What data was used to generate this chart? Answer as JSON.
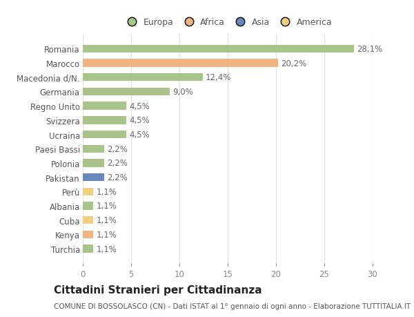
{
  "categories": [
    "Romania",
    "Marocco",
    "Macedonia d/N.",
    "Germania",
    "Regno Unito",
    "Svizzera",
    "Ucraina",
    "Paesi Bassi",
    "Polonia",
    "Pakistan",
    "Perù",
    "Albania",
    "Cuba",
    "Kenya",
    "Turchia"
  ],
  "values": [
    28.1,
    20.2,
    12.4,
    9.0,
    4.5,
    4.5,
    4.5,
    2.2,
    2.2,
    2.2,
    1.1,
    1.1,
    1.1,
    1.1,
    1.1
  ],
  "labels": [
    "28,1%",
    "20,2%",
    "12,4%",
    "9,0%",
    "4,5%",
    "4,5%",
    "4,5%",
    "2,2%",
    "2,2%",
    "2,2%",
    "1,1%",
    "1,1%",
    "1,1%",
    "1,1%",
    "1,1%"
  ],
  "colors": [
    "#a8c48a",
    "#f0b482",
    "#a8c48a",
    "#a8c48a",
    "#a8c48a",
    "#a8c48a",
    "#a8c48a",
    "#a8c48a",
    "#a8c48a",
    "#6688bb",
    "#f0d080",
    "#a8c48a",
    "#f0d080",
    "#f0b482",
    "#a8c48a"
  ],
  "legend_labels": [
    "Europa",
    "Africa",
    "Asia",
    "America"
  ],
  "legend_colors": [
    "#a8c48a",
    "#f0b482",
    "#6688bb",
    "#f0d080"
  ],
  "title": "Cittadini Stranieri per Cittadinanza",
  "subtitle": "COMUNE DI BOSSOLASCO (CN) - Dati ISTAT al 1° gennaio di ogni anno - Elaborazione TUTTITALIA.IT",
  "xlim": [
    0,
    30
  ],
  "xticks": [
    0,
    5,
    10,
    15,
    20,
    25,
    30
  ],
  "bg_color": "#ffffff",
  "grid_color": "#e0e0e0",
  "bar_height": 0.55,
  "label_fontsize": 8.5,
  "tick_fontsize": 8.5,
  "title_fontsize": 11,
  "subtitle_fontsize": 7.5
}
